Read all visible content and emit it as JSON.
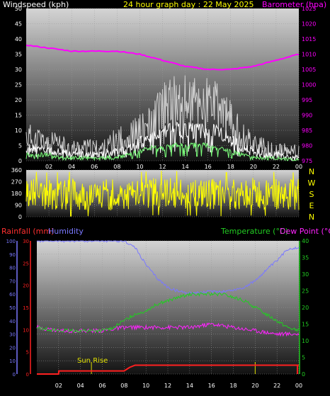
{
  "colors": {
    "windspeed": "#ffffff",
    "windgust": "#cfcfcf",
    "windavg": "#7cff7c",
    "barometer": "#ff00ff",
    "direction": "#ffff00",
    "rainfall": "#ff2020",
    "humidity": "#7a78ff",
    "temperature": "#22cc22",
    "dewpoint": "#ff22ff",
    "sunrise": "#e0e000",
    "tick_white": "#ffffff",
    "tick_right_top": "#ff00ff",
    "tick_right_bottom": "#22cc22"
  },
  "chart_data": [
    {
      "type": "line",
      "title": "24 hour graph day : 22 May 2025",
      "ylabel": "Windspeed (kph)",
      "y2label": "Barometer (hpa)",
      "x_ticks": [
        "02",
        "04",
        "06",
        "08",
        "10",
        "12",
        "14",
        "16",
        "18",
        "20",
        "22",
        "00"
      ],
      "ylim": [
        0,
        50
      ],
      "y_ticks": [
        0,
        5,
        10,
        15,
        20,
        25,
        30,
        35,
        40,
        45,
        50
      ],
      "y2lim": [
        975,
        1025
      ],
      "y2_ticks": [
        975,
        980,
        985,
        990,
        995,
        1000,
        1005,
        1010,
        1015,
        1020,
        1025
      ],
      "grid": true,
      "series": [
        {
          "key": "gust",
          "x": [
            0,
            1,
            2,
            3,
            4,
            5,
            6,
            7,
            8,
            9,
            10,
            11,
            12,
            13,
            14,
            15,
            16,
            17,
            18,
            19,
            20,
            21,
            22,
            23,
            24
          ],
          "values": [
            8,
            7,
            6,
            5,
            4,
            4,
            4,
            4,
            7,
            8,
            10,
            12,
            18,
            19,
            19,
            19,
            19,
            17,
            13,
            8,
            6,
            4,
            3,
            3,
            3
          ]
        },
        {
          "key": "speed",
          "x": [
            0,
            1,
            2,
            3,
            4,
            5,
            6,
            7,
            8,
            9,
            10,
            11,
            12,
            13,
            14,
            15,
            16,
            17,
            18,
            19,
            20,
            21,
            22,
            23,
            24
          ],
          "values": [
            4,
            4,
            3,
            3,
            2,
            2,
            2,
            2,
            3,
            4,
            6,
            7,
            9,
            10,
            10,
            10,
            10,
            9,
            7,
            4,
            3,
            2,
            2,
            1,
            1
          ]
        },
        {
          "key": "avg",
          "x": [
            0,
            1,
            2,
            3,
            4,
            5,
            6,
            7,
            8,
            9,
            10,
            11,
            12,
            13,
            14,
            15,
            16,
            17,
            18,
            19,
            20,
            21,
            22,
            23,
            24
          ],
          "values": [
            2,
            2,
            2,
            1,
            1,
            1,
            1,
            1,
            1,
            2,
            3,
            4,
            4,
            5,
            5,
            5,
            5,
            4,
            3,
            2,
            1,
            1,
            1,
            0.5,
            0.5
          ]
        },
        {
          "key": "barometer",
          "x": [
            0,
            2,
            4,
            6,
            8,
            10,
            12,
            14,
            16,
            17,
            18,
            20,
            22,
            23,
            24
          ],
          "values": [
            1013,
            1012,
            1011,
            1011,
            1011,
            1010,
            1008,
            1006,
            1005,
            1005,
            1005,
            1006,
            1008,
            1009,
            1010
          ]
        }
      ]
    },
    {
      "type": "line",
      "title": "",
      "ylim": [
        0,
        360
      ],
      "y_ticks": [
        0,
        90,
        180,
        270,
        360
      ],
      "compass": [
        "N",
        "W",
        "S",
        "E",
        "N"
      ],
      "series": [
        {
          "key": "direction",
          "x": [
            0,
            2,
            4,
            6,
            8,
            10,
            12,
            14,
            16,
            18,
            20,
            22,
            24
          ],
          "values": [
            180,
            170,
            175,
            165,
            170,
            175,
            185,
            180,
            175,
            170,
            180,
            175,
            170
          ]
        }
      ]
    },
    {
      "type": "line",
      "title": "",
      "ylabel_rain": "Rainfall (mm)",
      "ylabel_humidity": "Humidity",
      "ylabel_temp": "Temperature (°C)",
      "ylabel_dew": "Dew Point (°C)",
      "annotation": "Sun Rise",
      "annotation_x": 5,
      "sunset_x": 20,
      "x_ticks": [
        "02",
        "04",
        "06",
        "08",
        "10",
        "12",
        "14",
        "16",
        "18",
        "20",
        "22",
        "00"
      ],
      "humidity_ticks": [
        0,
        10,
        20,
        30,
        40,
        50,
        60,
        70,
        80,
        90,
        100
      ],
      "rain_ticks": [
        0,
        5,
        10,
        15,
        20,
        25,
        30
      ],
      "rain_lim": [
        0,
        30
      ],
      "temp_ticks": [
        0,
        5,
        10,
        15,
        20,
        25,
        30,
        35,
        40
      ],
      "temp_lim": [
        0,
        40
      ],
      "series": [
        {
          "key": "humidity",
          "x": [
            0,
            2,
            4,
            6,
            8,
            9,
            10,
            11,
            12,
            13,
            14,
            15,
            16,
            17,
            18,
            19,
            20,
            21,
            22,
            23,
            24
          ],
          "values": [
            100,
            100,
            100,
            100,
            100,
            95,
            82,
            72,
            65,
            62,
            61,
            61,
            62,
            62,
            63,
            65,
            70,
            78,
            85,
            94,
            95
          ]
        },
        {
          "key": "temperature",
          "x": [
            0,
            2,
            4,
            6,
            7,
            8,
            9,
            10,
            11,
            12,
            13,
            14,
            15,
            16,
            17,
            18,
            19,
            20,
            21,
            22,
            23,
            24
          ],
          "values": [
            14,
            13,
            13,
            13,
            14,
            16,
            18,
            19,
            21,
            22,
            23,
            24,
            24,
            24,
            24,
            23,
            22,
            20,
            18,
            16,
            14,
            13
          ]
        },
        {
          "key": "dewpoint",
          "x": [
            0,
            2,
            4,
            6,
            8,
            10,
            12,
            14,
            16,
            18,
            20,
            22,
            24
          ],
          "values": [
            14,
            13,
            13,
            13,
            14,
            14,
            14,
            14,
            15,
            14,
            13,
            12,
            12
          ]
        },
        {
          "key": "rainfall",
          "x": [
            0,
            2,
            2.01,
            8,
            8.5,
            9,
            18,
            24
          ],
          "values": [
            0,
            0,
            0.7,
            0.7,
            1.5,
            2.0,
            2.0,
            2.0
          ]
        }
      ]
    }
  ]
}
